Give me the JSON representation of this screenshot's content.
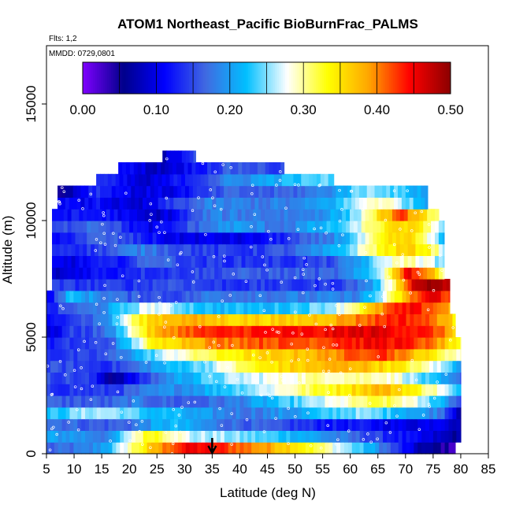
{
  "chart_data": {
    "type": "heatmap",
    "title": "ATOM1 Northeast_Pacific BioBurnFrac_PALMS",
    "flights_note": "Flts: 1,2",
    "dates_note": "MMDD: 0729,0801",
    "xlabel": "Latitude (deg N)",
    "ylabel": "Altitude (m)",
    "xlim": [
      5,
      85
    ],
    "ylim": [
      0,
      17500
    ],
    "x_ticks": [
      5,
      10,
      15,
      20,
      25,
      30,
      35,
      40,
      45,
      50,
      55,
      60,
      65,
      70,
      75,
      80,
      85
    ],
    "y_ticks": [
      0,
      5000,
      10000,
      15000
    ],
    "y_tick_labels": [
      "0",
      "5000",
      "10000",
      "15000"
    ],
    "colorbar": {
      "range": [
        0,
        0.5
      ],
      "ticks": [
        0.0,
        0.1,
        0.2,
        0.3,
        0.4,
        0.5
      ],
      "tick_labels": [
        "0.00",
        "0.10",
        "0.20",
        "0.30",
        "0.40",
        "0.50"
      ],
      "colors": [
        "#8000ff",
        "#00008b",
        "#0000ff",
        "#4169e1",
        "#00bfff",
        "#ffffff",
        "#ffff00",
        "#ffa500",
        "#ff0000",
        "#8b0000"
      ]
    },
    "marker": {
      "x": 35,
      "symbol": "down-arrow"
    },
    "layers_note": "altitude bands every 500 m; each row gives start/end latitude and BioBurnFrac values across latitude",
    "layers": [
      {
        "alt": 250,
        "lat": [
          5,
          79
        ],
        "v": [
          0.16,
          0.17,
          0.18,
          0.22,
          0.3,
          0.36,
          0.42,
          0.45,
          0.44,
          0.42,
          0.4,
          0.38,
          0.36,
          0.32,
          0.28,
          0.24,
          0.2,
          0.14,
          0.08,
          0.05,
          0.03
        ]
      },
      {
        "alt": 750,
        "lat": [
          5,
          80
        ],
        "v": [
          0.2,
          0.2,
          0.19,
          0.18,
          0.28,
          0.34,
          0.3,
          0.26,
          0.26,
          0.25,
          0.24,
          0.23,
          0.22,
          0.2,
          0.18,
          0.16,
          0.14,
          0.12,
          0.1,
          0.08,
          0.06
        ]
      },
      {
        "alt": 1250,
        "lat": [
          5,
          80
        ],
        "v": [
          0.18,
          0.17,
          0.16,
          0.16,
          0.17,
          0.2,
          0.22,
          0.2,
          0.18,
          0.17,
          0.16,
          0.15,
          0.14,
          0.13,
          0.12,
          0.12,
          0.11,
          0.1,
          0.1,
          0.12,
          0.06
        ]
      },
      {
        "alt": 1750,
        "lat": [
          5,
          80
        ],
        "v": [
          0.22,
          0.24,
          0.26,
          0.26,
          0.24,
          0.22,
          0.22,
          0.2,
          0.19,
          0.18,
          0.18,
          0.19,
          0.2,
          0.22,
          0.24,
          0.25,
          0.24,
          0.22,
          0.2,
          0.18,
          0.06
        ]
      },
      {
        "alt": 2250,
        "lat": [
          5,
          80
        ],
        "v": [
          0.16,
          0.16,
          0.16,
          0.16,
          0.18,
          0.17,
          0.16,
          0.16,
          0.17,
          0.18,
          0.2,
          0.22,
          0.24,
          0.26,
          0.28,
          0.3,
          0.32,
          0.3,
          0.26,
          0.22,
          0.14
        ]
      },
      {
        "alt": 2750,
        "lat": [
          5,
          80
        ],
        "v": [
          0.14,
          0.14,
          0.14,
          0.14,
          0.16,
          0.18,
          0.19,
          0.2,
          0.22,
          0.24,
          0.26,
          0.28,
          0.3,
          0.32,
          0.34,
          0.36,
          0.38,
          0.36,
          0.32,
          0.28,
          0.2
        ]
      },
      {
        "alt": 3250,
        "lat": [
          5,
          80
        ],
        "v": [
          0.15,
          0.15,
          0.14,
          0.06,
          0.1,
          0.16,
          0.2,
          0.22,
          0.24,
          0.26,
          0.27,
          0.28,
          0.29,
          0.3,
          0.3,
          0.3,
          0.3,
          0.28,
          0.24,
          0.2,
          0.16
        ]
      },
      {
        "alt": 3750,
        "lat": [
          5,
          80
        ],
        "v": [
          0.15,
          0.15,
          0.14,
          0.14,
          0.16,
          0.2,
          0.22,
          0.24,
          0.26,
          0.3,
          0.33,
          0.35,
          0.36,
          0.37,
          0.38,
          0.38,
          0.36,
          0.34,
          0.3,
          0.26,
          0.2
        ]
      },
      {
        "alt": 4250,
        "lat": [
          5,
          80
        ],
        "v": [
          0.14,
          0.14,
          0.14,
          0.16,
          0.2,
          0.24,
          0.28,
          0.3,
          0.32,
          0.34,
          0.35,
          0.36,
          0.37,
          0.38,
          0.4,
          0.42,
          0.44,
          0.4,
          0.36,
          0.32,
          0.28
        ]
      },
      {
        "alt": 4750,
        "lat": [
          5,
          80
        ],
        "v": [
          0.12,
          0.14,
          0.14,
          0.16,
          0.24,
          0.33,
          0.36,
          0.38,
          0.4,
          0.41,
          0.42,
          0.42,
          0.42,
          0.42,
          0.44,
          0.44,
          0.45,
          0.44,
          0.42,
          0.38,
          0.3
        ]
      },
      {
        "alt": 5250,
        "lat": [
          5,
          79
        ],
        "v": [
          0.08,
          0.14,
          0.15,
          0.18,
          0.28,
          0.36,
          0.4,
          0.42,
          0.43,
          0.43,
          0.44,
          0.44,
          0.44,
          0.44,
          0.45,
          0.46,
          0.46,
          0.45,
          0.44,
          0.42,
          0.36
        ]
      },
      {
        "alt": 5750,
        "lat": [
          5,
          79
        ],
        "v": [
          0.1,
          0.15,
          0.16,
          0.2,
          0.3,
          0.36,
          0.38,
          0.38,
          0.37,
          0.36,
          0.36,
          0.36,
          0.36,
          0.37,
          0.38,
          0.4,
          0.42,
          0.44,
          0.43,
          0.4,
          0.34
        ]
      },
      {
        "alt": 6250,
        "lat": [
          5,
          78
        ],
        "v": [
          0.12,
          0.16,
          0.17,
          0.2,
          0.24,
          0.28,
          0.26,
          0.24,
          0.22,
          0.22,
          0.22,
          0.22,
          0.23,
          0.24,
          0.26,
          0.3,
          0.36,
          0.42,
          0.44,
          0.42,
          0.38
        ]
      },
      {
        "alt": 6750,
        "lat": [
          5,
          78
        ],
        "v": [
          0.1,
          0.22,
          0.2,
          0.18,
          0.16,
          0.16,
          0.15,
          0.16,
          0.18,
          0.18,
          0.18,
          0.18,
          0.18,
          0.18,
          0.18,
          0.18,
          0.22,
          0.3,
          0.4,
          0.46,
          0.42
        ]
      },
      {
        "alt": 7250,
        "lat": [
          6,
          78
        ],
        "v": [
          0.14,
          0.14,
          0.14,
          0.14,
          0.14,
          0.15,
          0.16,
          0.15,
          0.14,
          0.14,
          0.14,
          0.14,
          0.14,
          0.14,
          0.14,
          0.16,
          0.2,
          0.3,
          0.46,
          0.5,
          0.46
        ]
      },
      {
        "alt": 7750,
        "lat": [
          6,
          77
        ],
        "v": [
          0.08,
          0.1,
          0.12,
          0.12,
          0.14,
          0.14,
          0.14,
          0.15,
          0.15,
          0.16,
          0.16,
          0.16,
          0.16,
          0.16,
          0.16,
          0.18,
          0.22,
          0.3,
          0.46,
          0.4,
          0.3
        ]
      },
      {
        "alt": 8250,
        "lat": [
          6,
          77
        ],
        "v": [
          0.1,
          0.1,
          0.12,
          0.12,
          0.14,
          0.18,
          0.16,
          0.14,
          0.14,
          0.14,
          0.14,
          0.14,
          0.14,
          0.14,
          0.15,
          0.18,
          0.22,
          0.28,
          0.3,
          0.28,
          0.24
        ]
      },
      {
        "alt": 8750,
        "lat": [
          6,
          77
        ],
        "v": [
          0.14,
          0.14,
          0.14,
          0.16,
          0.18,
          0.18,
          0.16,
          0.15,
          0.14,
          0.14,
          0.14,
          0.15,
          0.16,
          0.18,
          0.2,
          0.24,
          0.3,
          0.34,
          0.36,
          0.34,
          0.26
        ]
      },
      {
        "alt": 9250,
        "lat": [
          6,
          77
        ],
        "v": [
          0.1,
          0.14,
          0.16,
          0.16,
          0.14,
          0.12,
          0.1,
          0.1,
          0.1,
          0.1,
          0.1,
          0.12,
          0.14,
          0.16,
          0.18,
          0.22,
          0.28,
          0.34,
          0.36,
          0.3,
          0.2
        ]
      },
      {
        "alt": 9750,
        "lat": [
          6,
          77
        ],
        "v": [
          0.14,
          0.16,
          0.18,
          0.16,
          0.12,
          0.1,
          0.12,
          0.16,
          0.18,
          0.2,
          0.19,
          0.18,
          0.18,
          0.2,
          0.22,
          0.24,
          0.3,
          0.34,
          0.36,
          0.32,
          0.24
        ]
      },
      {
        "alt": 10250,
        "lat": [
          6,
          76
        ],
        "v": [
          0.12,
          0.12,
          0.12,
          0.12,
          0.1,
          0.08,
          0.1,
          0.14,
          0.18,
          0.18,
          0.18,
          0.18,
          0.18,
          0.18,
          0.2,
          0.22,
          0.28,
          0.36,
          0.42,
          0.36,
          0.28
        ]
      },
      {
        "alt": 10750,
        "lat": [
          7,
          74
        ],
        "v": [
          0.12,
          0.1,
          0.12,
          0.1,
          0.08,
          0.1,
          0.14,
          0.16,
          0.18,
          0.18,
          0.18,
          0.18,
          0.18,
          0.18,
          0.2,
          0.22,
          0.26,
          0.3,
          0.28,
          0.24,
          0.2
        ]
      },
      {
        "alt": 11250,
        "lat": [
          7,
          74
        ],
        "v": [
          0.04,
          0.1,
          0.14,
          0.12,
          0.1,
          0.1,
          0.1,
          0.12,
          0.14,
          0.16,
          0.16,
          0.16,
          0.16,
          0.17,
          0.18,
          0.2,
          0.24,
          0.26,
          0.24,
          0.22,
          0.2
        ]
      },
      {
        "alt": 11750,
        "lat": [
          14,
          57
        ],
        "v": [
          0.14,
          0.12,
          0.1,
          0.08,
          0.1,
          0.12,
          0.14,
          0.16,
          0.18,
          0.19,
          0.2,
          0.21,
          0.22,
          0.23,
          0.24,
          0.24
        ]
      },
      {
        "alt": 12250,
        "lat": [
          18,
          48
        ],
        "v": [
          0.12,
          0.1,
          0.08,
          0.1,
          0.12,
          0.14,
          0.16,
          0.16,
          0.15,
          0.14
        ]
      },
      {
        "alt": 12750,
        "lat": [
          26,
          32
        ],
        "v": [
          0.08,
          0.1,
          0.14,
          0.16
        ]
      }
    ]
  }
}
